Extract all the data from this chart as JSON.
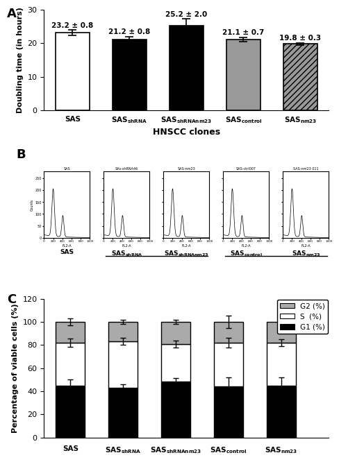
{
  "panel_A": {
    "categories": [
      "SAS",
      "SAS$_{shRNA}$",
      "SAS$_{shRNAnm23}$",
      "SAS$_{control}$",
      "SAS$_{nm23}$"
    ],
    "values": [
      23.2,
      21.2,
      25.2,
      21.1,
      19.8
    ],
    "errors": [
      0.8,
      0.8,
      2.0,
      0.7,
      0.3
    ],
    "labels": [
      "23.2 ± 0.8",
      "21.2 ± 0.8",
      "25.2 ± 2.0",
      "21.1 ± 0.7",
      "19.8 ± 0.3"
    ],
    "bar_colors": [
      "white",
      "black",
      "black",
      "#999999",
      "#999999"
    ],
    "bar_hatches": [
      null,
      null,
      "////",
      null,
      "////"
    ],
    "bar_edgecolors": [
      "black",
      "black",
      "black",
      "black",
      "black"
    ],
    "ylabel": "Doubling time (in hours)",
    "ylim": [
      0,
      30
    ],
    "yticks": [
      0,
      10,
      20,
      30
    ],
    "xlabel_main": "HNSCC clones"
  },
  "panel_B": {
    "titles": [
      "SAS",
      "SAs-shRNA46",
      "SAS-nm23",
      "SAS-ctrl007",
      "SAS-nm23 011"
    ],
    "xlabels": [
      "SAS",
      "SAS$_{shRNA}$",
      "SAS$_{shRNAnm23}$",
      "SAS$_{control}$",
      "SAS$_{nm23}$"
    ]
  },
  "panel_C": {
    "G1": [
      45.0,
      43.0,
      48.5,
      44.0,
      45.0
    ],
    "S": [
      37.0,
      40.0,
      32.5,
      38.0,
      37.0
    ],
    "G2": [
      18.0,
      17.0,
      19.0,
      18.0,
      18.0
    ],
    "G1_err": [
      5.0,
      3.0,
      3.0,
      8.0,
      7.0
    ],
    "S_err": [
      3.5,
      3.0,
      3.0,
      4.0,
      3.0
    ],
    "G2_err": [
      3.0,
      2.0,
      2.0,
      5.5,
      6.0
    ],
    "ylabel": "Percentage of viable cells (%)",
    "ylim": [
      0,
      120
    ],
    "yticks": [
      0,
      20,
      40,
      60,
      80,
      100,
      120
    ],
    "xlabels": [
      "SAS",
      "SAS$_{shRNA}$",
      "SAS$_{shRNAnm23}$",
      "SAS$_{control}$",
      "SAS$_{nm23}$"
    ]
  },
  "background_color": "white",
  "fig_width": 5.0,
  "fig_height": 6.56
}
